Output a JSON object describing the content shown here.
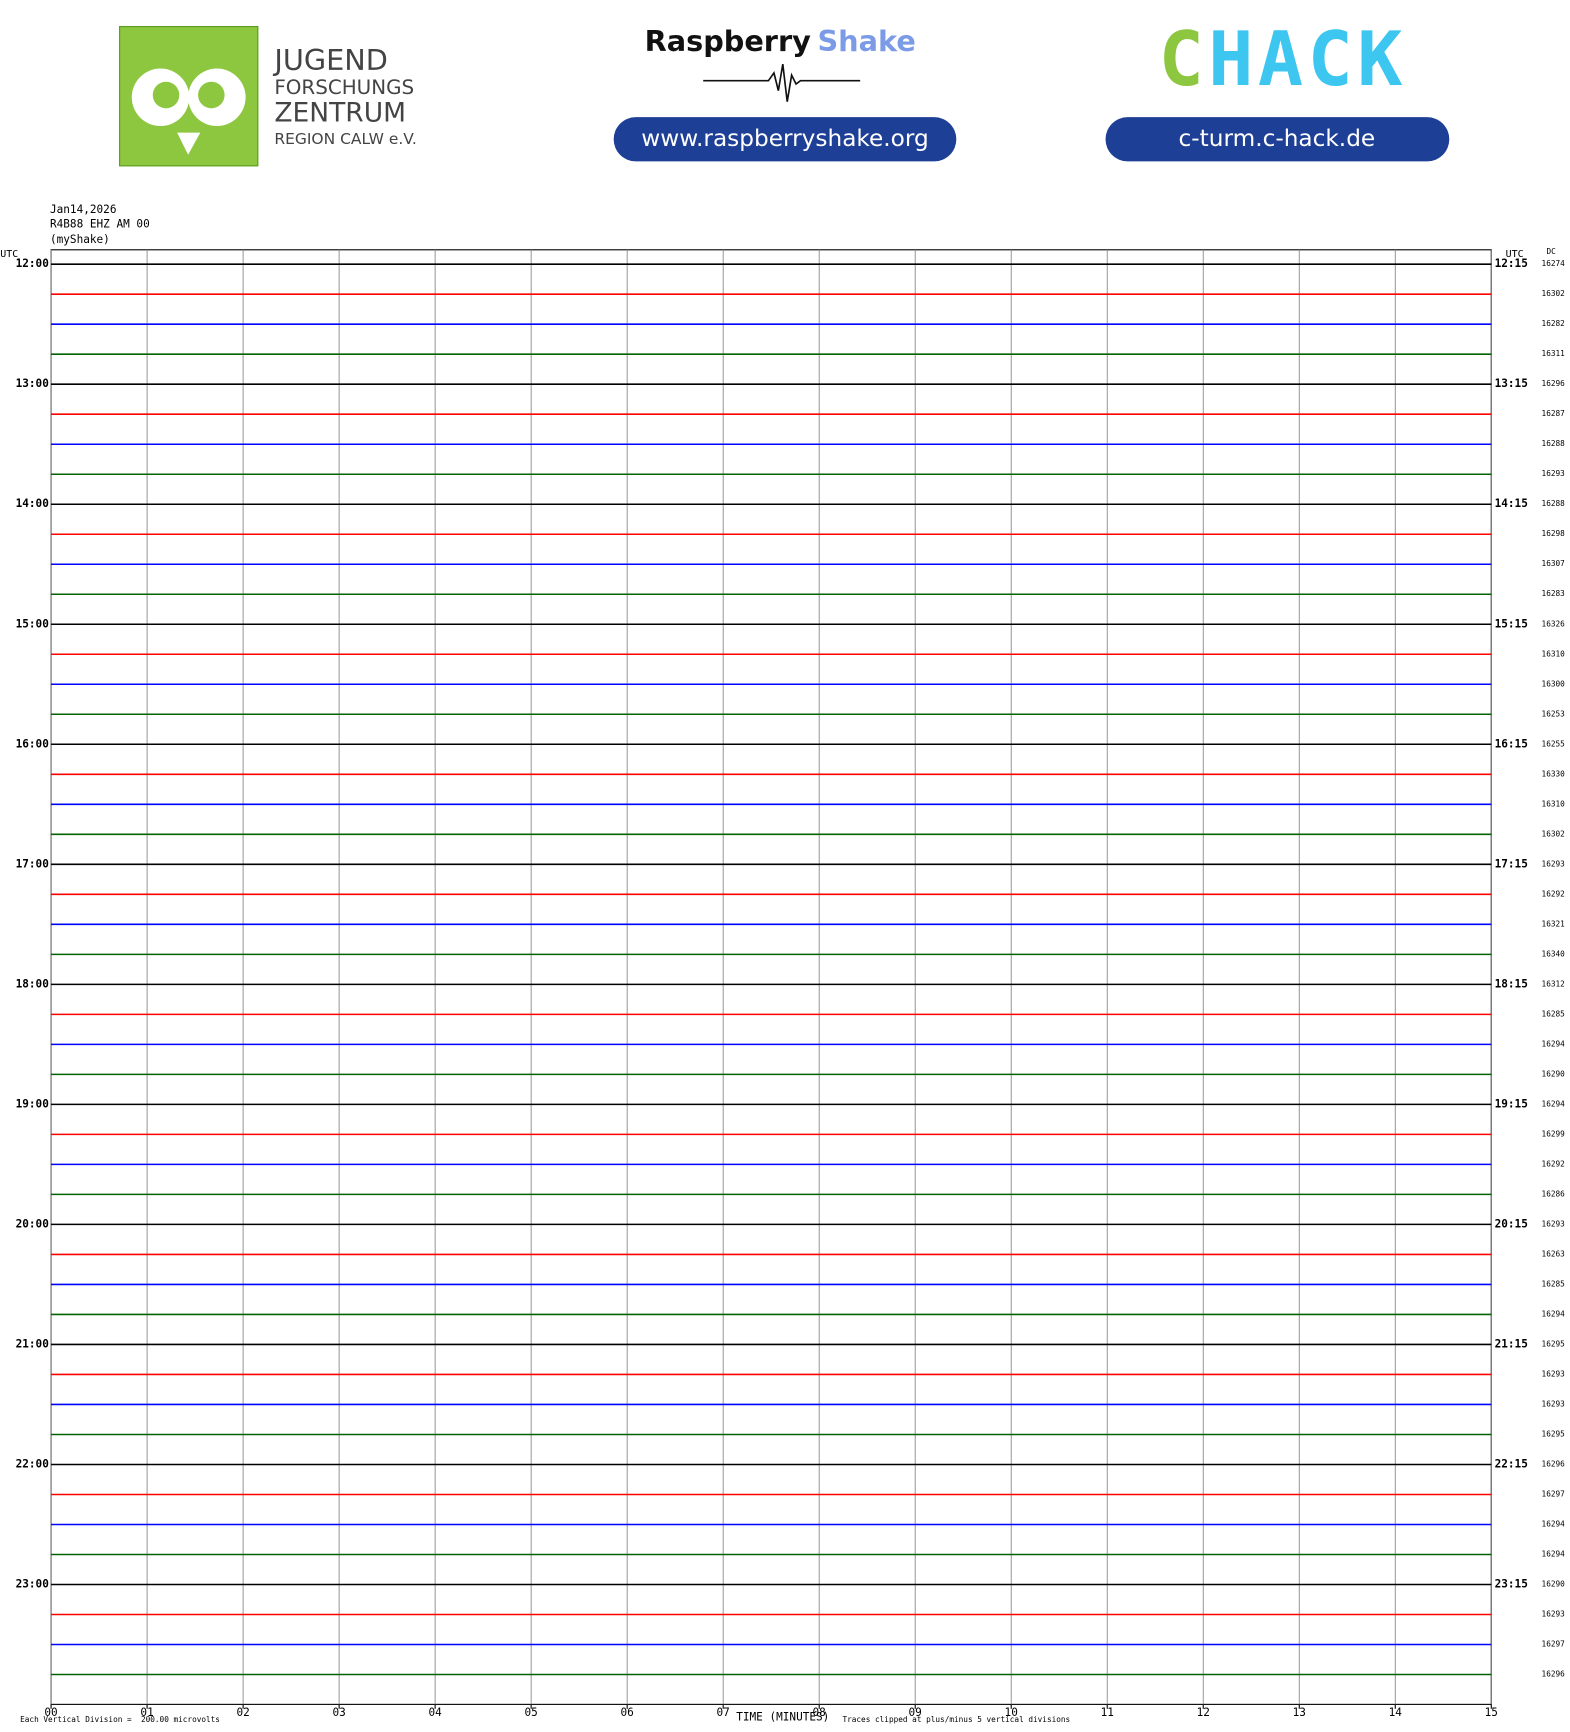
{
  "header": {
    "logo_left": [
      "JUGEND",
      "FORSCHUNGS",
      "ZENTRUM",
      "REGION CALW e.V."
    ],
    "brand_a": "Raspberry",
    "brand_b": "Shake",
    "link1": "www.raspberryshake.org",
    "logo_right_a": "C",
    "logo_right_b": "HACK",
    "link2": "c-turm.c-hack.de"
  },
  "chart_data": {
    "type": "helicorder",
    "date": "Jan14,2026",
    "station": "R4B88 EHZ AM 00",
    "source": "(myShake)",
    "left_axis_label": "UTC",
    "right_axis_label": "UTC",
    "dc_label": "DC",
    "left_labels": [
      "12:00",
      "13:00",
      "14:00",
      "15:00",
      "16:00",
      "17:00",
      "18:00",
      "19:00",
      "20:00",
      "21:00",
      "22:00",
      "23:00"
    ],
    "right_labels": [
      "12:15",
      "13:15",
      "14:15",
      "15:15",
      "16:15",
      "17:15",
      "18:15",
      "19:15",
      "20:15",
      "21:15",
      "22:15",
      "23:15"
    ],
    "dc": [
      16274,
      16302,
      16282,
      16311,
      16296,
      16287,
      16288,
      16293,
      16288,
      16298,
      16307,
      16283,
      16326,
      16310,
      16300,
      16253,
      16255,
      16330,
      16310,
      16302,
      16293,
      16292,
      16321,
      16340,
      16312,
      16285,
      16294,
      16290,
      16294,
      16299,
      16292,
      16286,
      16293,
      16263,
      16285,
      16294,
      16295,
      16293,
      16293,
      16295,
      16296,
      16297,
      16294,
      16294,
      16290,
      16293,
      16297,
      16296
    ],
    "colors": [
      "#000000",
      "#ff0000",
      "#0000ff",
      "#006400"
    ],
    "xlim": [
      0,
      15
    ],
    "xticks": [
      {
        "value": 0,
        "label": "00"
      },
      {
        "value": 1,
        "label": "01"
      },
      {
        "value": 2,
        "label": "02"
      },
      {
        "value": 3,
        "label": "03"
      },
      {
        "value": 4,
        "label": "04"
      },
      {
        "value": 5,
        "label": "05"
      },
      {
        "value": 6,
        "label": "06"
      },
      {
        "value": 7,
        "label": "07"
      },
      {
        "value": 8,
        "label": "08"
      },
      {
        "value": 9,
        "label": "09"
      },
      {
        "value": 10,
        "label": "10"
      },
      {
        "value": 11,
        "label": "11"
      },
      {
        "value": 12,
        "label": "12"
      },
      {
        "value": 13,
        "label": "13"
      },
      {
        "value": 14,
        "label": "14"
      },
      {
        "value": 15,
        "label": "15"
      }
    ],
    "xlabel": "TIME (MINUTES)",
    "scale_note": "Each Vertical Division =  200.00 microvolts",
    "clip_note": "Traces clipped at plus/minus 5 vertical divisions"
  }
}
